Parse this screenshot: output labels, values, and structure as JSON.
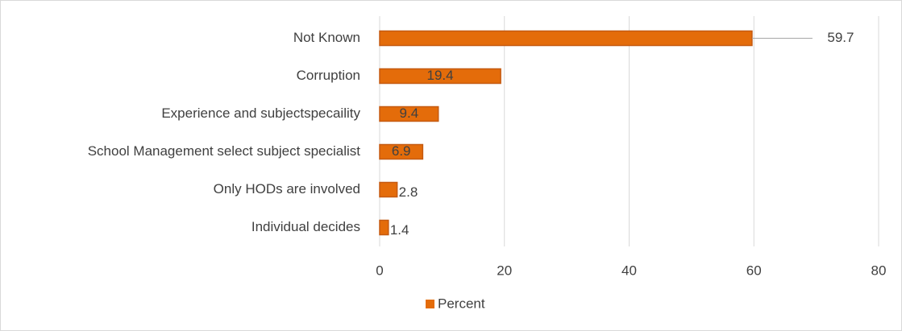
{
  "chart_data": {
    "type": "bar",
    "orientation": "horizontal",
    "categories": [
      "Not Known",
      "Corruption",
      "Experience and subjectspecaility",
      "School Management select subject specialist",
      "Only HODs are involved",
      "Individual decides"
    ],
    "series": [
      {
        "name": "Percent",
        "color": "#e46c0a",
        "values": [
          59.7,
          19.4,
          9.4,
          6.9,
          2.8,
          1.4
        ]
      }
    ],
    "xlim": [
      0,
      80
    ],
    "xticks": [
      0,
      20,
      40,
      60,
      80
    ],
    "grid": true,
    "legend": "bottom"
  }
}
